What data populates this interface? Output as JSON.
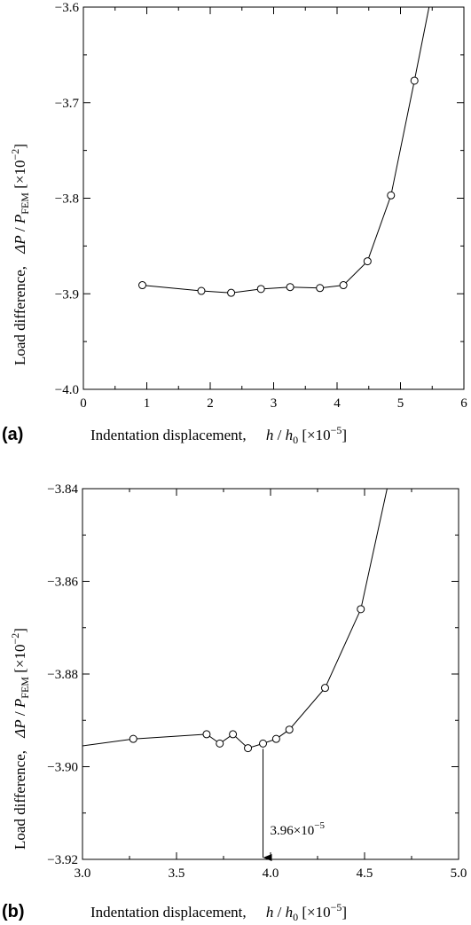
{
  "chart_data": [
    {
      "type": "line",
      "panel_label": "(a)",
      "xlim": [
        0,
        6
      ],
      "ylim": [
        -4.0,
        -3.6
      ],
      "x_ticks": [
        0,
        1,
        2,
        3,
        4,
        5,
        6
      ],
      "x_tick_labels": [
        "0",
        "1",
        "2",
        "3",
        "4",
        "5",
        "6"
      ],
      "y_ticks": [
        -4.0,
        -3.9,
        -3.8,
        -3.7,
        -3.6
      ],
      "y_tick_labels": [
        "−4.0",
        "−3.9",
        "−3.8",
        "−3.7",
        "−3.6"
      ],
      "xlabel": {
        "prefix": "Indentation displacement,",
        "var": "h",
        "sep": " / ",
        "var2": "h",
        "sub2": "0",
        "unit_open": " [×10",
        "unit_exp": "−5",
        "unit_close": "]"
      },
      "ylabel": {
        "prefix": "Load difference,",
        "var": "ΔP",
        "sep": " / ",
        "var2": "P",
        "sub2": "FEM",
        "unit_open": " [×10",
        "unit_exp": "−2",
        "unit_close": "]"
      },
      "grid": false,
      "series": [
        {
          "markers": "open-circle",
          "x": [
            0.93,
            1.86,
            2.33,
            2.8,
            3.26,
            3.73,
            4.1,
            4.48,
            4.85,
            5.22,
            5.45
          ],
          "y": [
            -3.891,
            -3.897,
            -3.899,
            -3.895,
            -3.893,
            -3.894,
            -3.891,
            -3.866,
            -3.797,
            -3.677,
            -3.6
          ],
          "marker_mask": [
            true,
            true,
            true,
            true,
            true,
            true,
            true,
            true,
            true,
            true,
            false
          ]
        }
      ]
    },
    {
      "type": "line",
      "panel_label": "(b)",
      "xlim": [
        3.0,
        5.0
      ],
      "ylim": [
        -3.92,
        -3.84
      ],
      "x_ticks": [
        3.0,
        3.5,
        4.0,
        4.5,
        5.0
      ],
      "x_tick_labels": [
        "3.0",
        "3.5",
        "4.0",
        "4.5",
        "5.0"
      ],
      "y_ticks": [
        -3.92,
        -3.9,
        -3.88,
        -3.86,
        -3.84
      ],
      "y_tick_labels": [
        "−3.92",
        "−3.90",
        "−3.88",
        "−3.86",
        "−3.84"
      ],
      "xlabel": {
        "prefix": "Indentation displacement,",
        "var": "h",
        "sep": " / ",
        "var2": "h",
        "sub2": "0",
        "unit_open": " [×10",
        "unit_exp": "−5",
        "unit_close": "]"
      },
      "ylabel": {
        "prefix": "Load difference,",
        "var": "ΔP",
        "sep": " / ",
        "var2": "P",
        "sub2": "FEM",
        "unit_open": " [×10",
        "unit_exp": "−2",
        "unit_close": "]"
      },
      "grid": false,
      "annotation": {
        "base": "3.96×10",
        "exp": "−5",
        "x": 3.96,
        "y_from": -3.895,
        "y_to": -3.92
      },
      "series": [
        {
          "markers": "open-circle",
          "x": [
            3.0,
            3.27,
            3.66,
            3.73,
            3.8,
            3.88,
            3.96,
            4.03,
            4.1,
            4.29,
            4.48,
            4.62
          ],
          "y": [
            -3.8955,
            -3.894,
            -3.893,
            -3.895,
            -3.893,
            -3.896,
            -3.895,
            -3.894,
            -3.892,
            -3.883,
            -3.866,
            -3.84
          ],
          "marker_mask": [
            false,
            true,
            true,
            true,
            true,
            true,
            true,
            true,
            true,
            true,
            true,
            false
          ]
        }
      ]
    }
  ]
}
